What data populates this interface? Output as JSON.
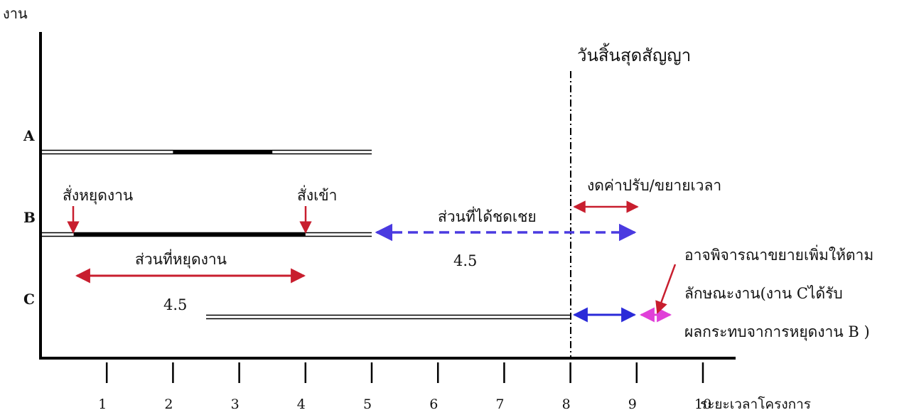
{
  "chart_data": {
    "type": "gantt",
    "ylabel": "งาน",
    "xlabel": "ระยะเวลาโครงการ",
    "x_ticks": [
      1,
      2,
      3,
      4,
      5,
      6,
      7,
      8,
      9,
      10
    ],
    "xlim": [
      0,
      10
    ],
    "tasks": [
      {
        "name": "A",
        "start": 0,
        "end": 5
      },
      {
        "name": "B",
        "start": 0,
        "end": 5
      },
      {
        "name": "C",
        "start": 2.5,
        "end": 8
      }
    ],
    "contract_end": {
      "label": "วันสิ้นสุดสัญญา",
      "x": 8
    },
    "annotations": {
      "stop_order": "สั่งหยุดงาน",
      "resume_order": "สั่งเข้า",
      "stopped_period": "ส่วนที่หยุดงาน",
      "stopped_duration": "4.5",
      "compensated_period": "ส่วนที่ได้ชดเชย",
      "compensated_duration": "4.5",
      "waive_penalty": "งดค่าปรับ/ขยายเวลา",
      "note_line1": "อาจพิจารณาขยายเพิ่มให้ตาม",
      "note_line2": "ลักษณะงาน(งาน Cได้รับ",
      "note_line3": "ผลกระทบจาการหยุดงาน B )"
    },
    "colors": {
      "axis": "#000000",
      "red_arrow": "#c81e2e",
      "blue_arrow": "#2a2ad8",
      "dashed_arrow": "#4a3ae0",
      "pink_arrow": "#e040d8"
    }
  }
}
